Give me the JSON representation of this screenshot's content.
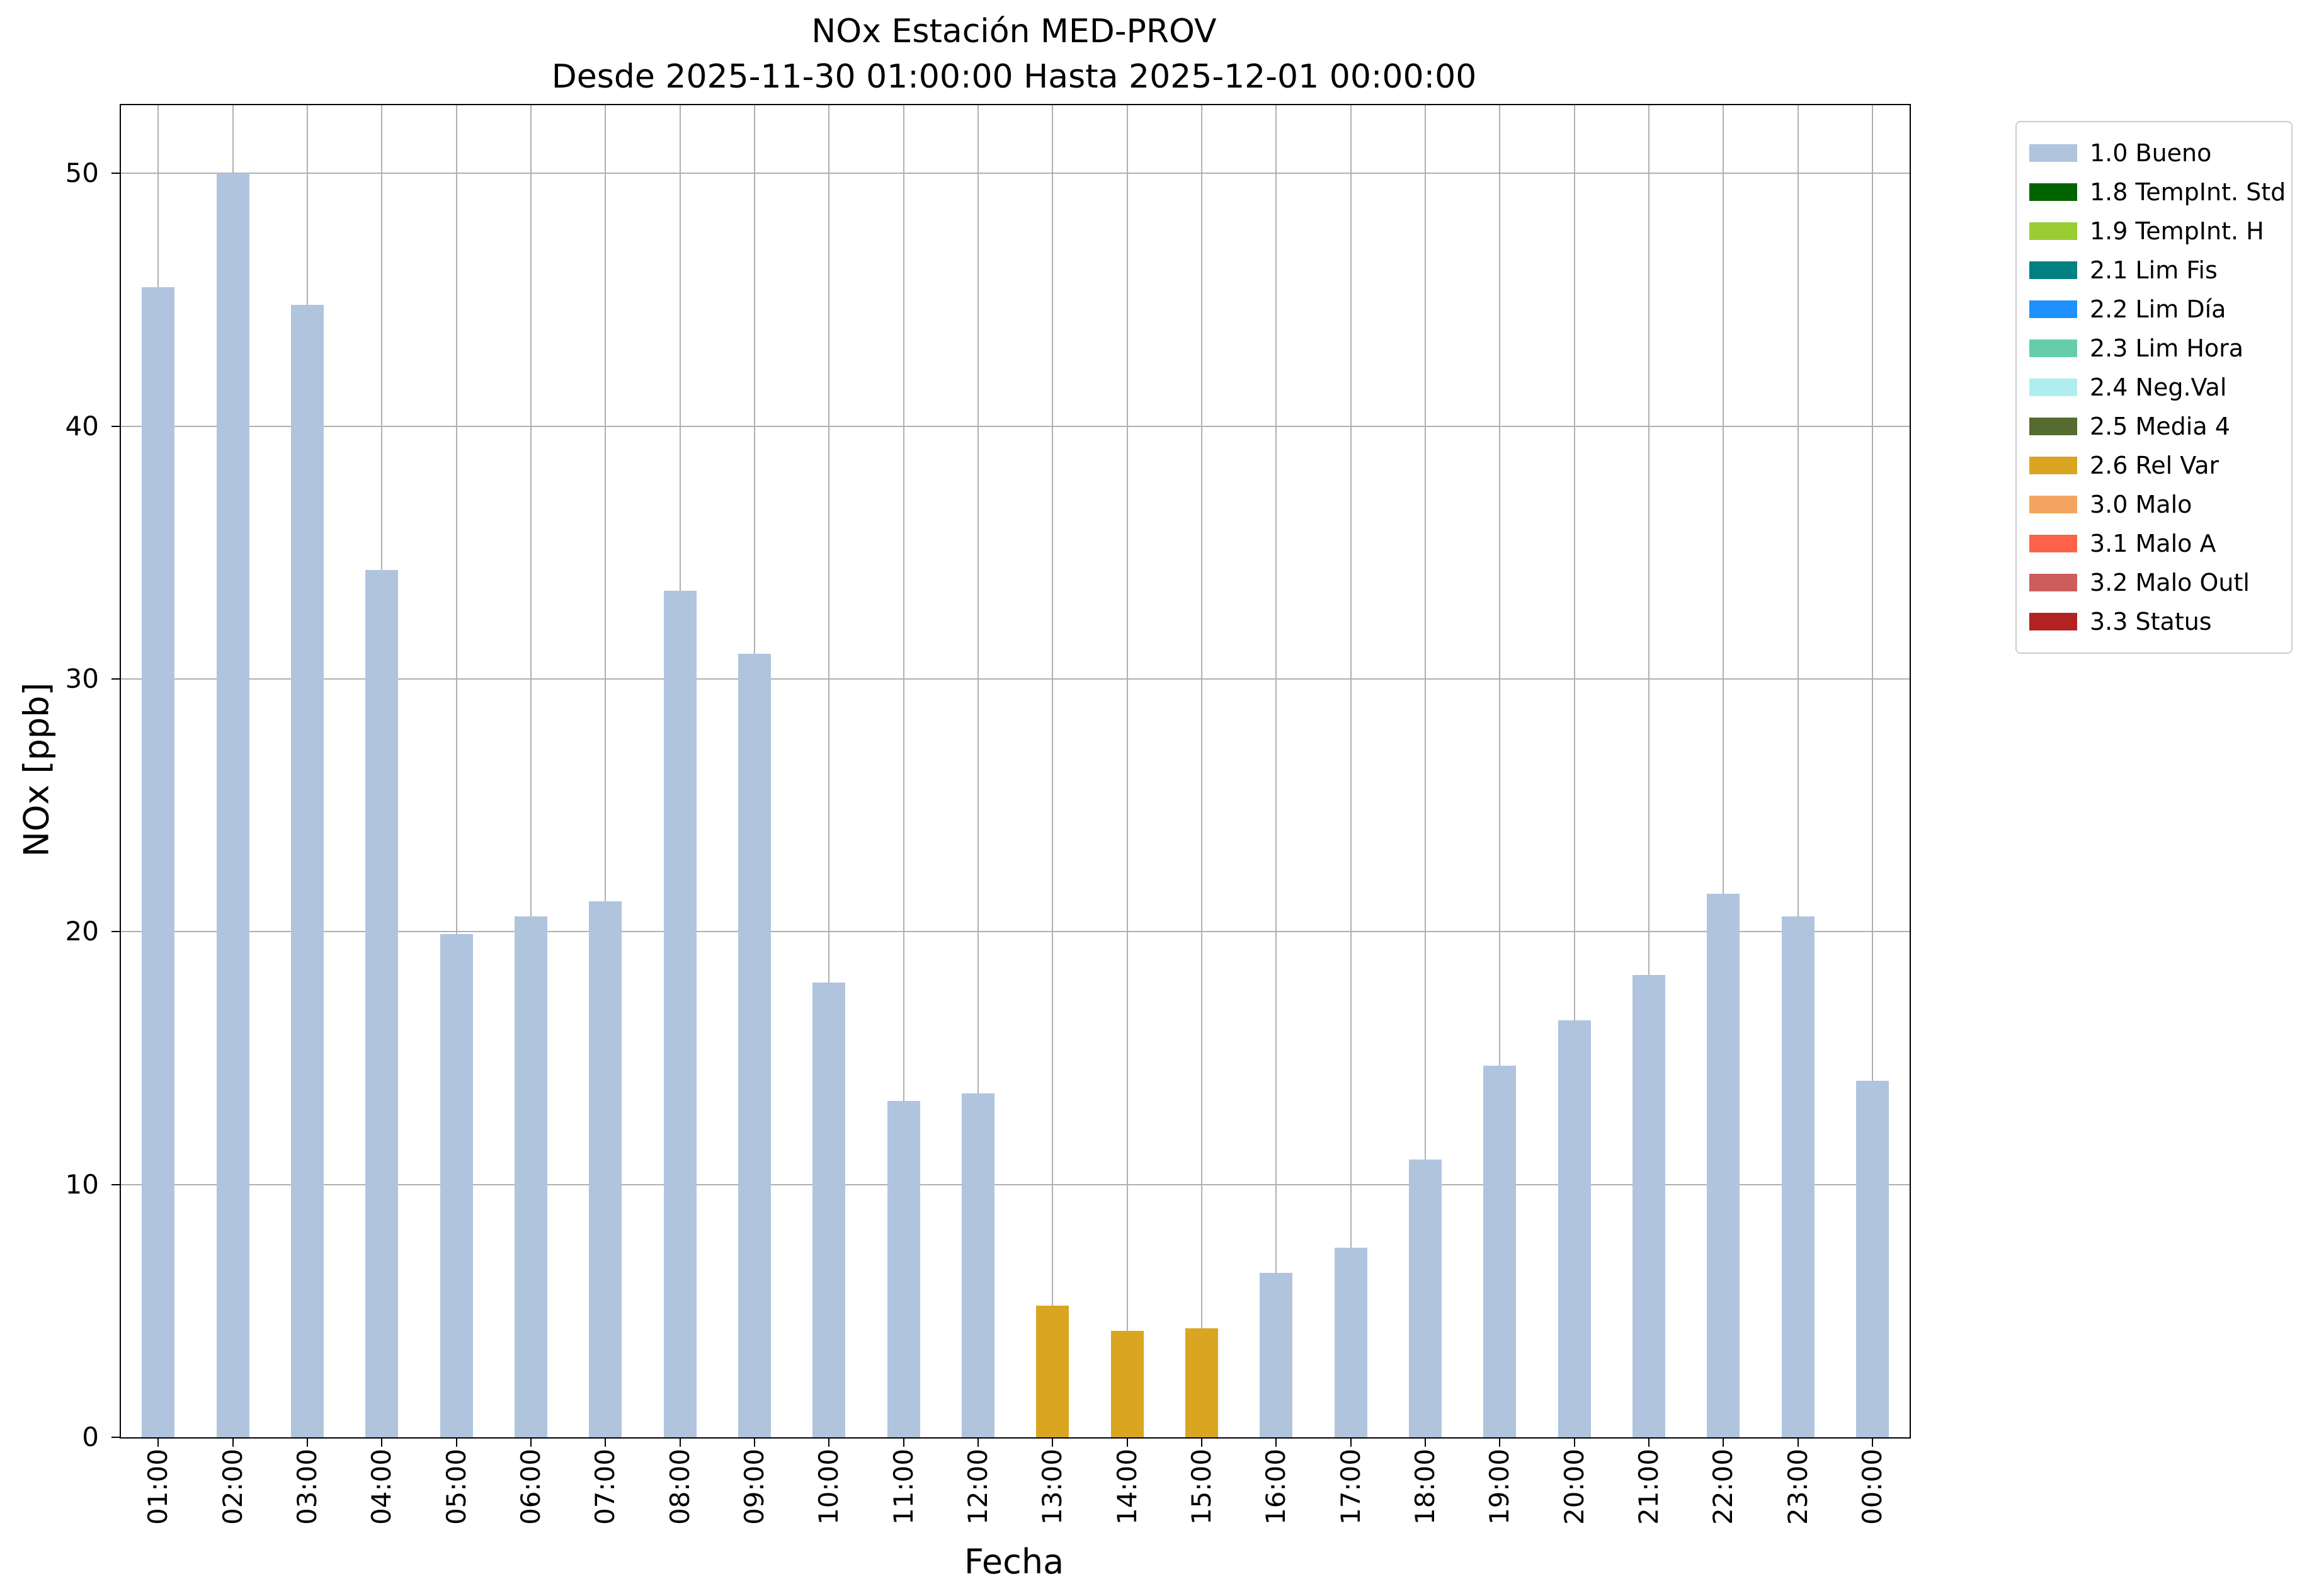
{
  "chart_data": {
    "type": "bar",
    "title": "NOx Estación MED-PROV",
    "subtitle": "Desde 2025-11-30 01:00:00 Hasta 2025-12-01 00:00:00",
    "xlabel": "Fecha",
    "ylabel": "NOx [ppb]",
    "ylim": [
      0,
      52.7
    ],
    "yticks": [
      0,
      10,
      20,
      30,
      40,
      50
    ],
    "grid": true,
    "legend_position": "outside-right",
    "categories": [
      "01:00",
      "02:00",
      "03:00",
      "04:00",
      "05:00",
      "06:00",
      "07:00",
      "08:00",
      "09:00",
      "10:00",
      "11:00",
      "12:00",
      "13:00",
      "14:00",
      "15:00",
      "16:00",
      "17:00",
      "18:00",
      "19:00",
      "20:00",
      "21:00",
      "22:00",
      "23:00",
      "00:00"
    ],
    "values": [
      45.5,
      50.0,
      44.8,
      34.3,
      19.9,
      20.6,
      21.2,
      33.5,
      31.0,
      18.0,
      13.3,
      13.6,
      5.2,
      4.2,
      4.3,
      6.5,
      7.5,
      11.0,
      14.7,
      16.5,
      18.3,
      21.5,
      20.6,
      14.1
    ],
    "flags": [
      "1.0",
      "1.0",
      "1.0",
      "1.0",
      "1.0",
      "1.0",
      "1.0",
      "1.0",
      "1.0",
      "1.0",
      "1.0",
      "1.0",
      "2.6",
      "2.6",
      "2.6",
      "1.0",
      "1.0",
      "1.0",
      "1.0",
      "1.0",
      "1.0",
      "1.0",
      "1.0",
      "1.0"
    ],
    "flag_colors": {
      "1.0": "#b0c4de",
      "2.6": "#daa520"
    },
    "legend": [
      {
        "label": "1.0 Bueno",
        "color": "#b0c4de"
      },
      {
        "label": "1.8 TempInt. Std",
        "color": "#006400"
      },
      {
        "label": "1.9 TempInt. H",
        "color": "#9acd32"
      },
      {
        "label": "2.1 Lim Fis",
        "color": "#008080"
      },
      {
        "label": "2.2 Lim Día",
        "color": "#1e90ff"
      },
      {
        "label": "2.3 Lim Hora",
        "color": "#66cdaa"
      },
      {
        "label": "2.4 Neg.Val",
        "color": "#afeeee"
      },
      {
        "label": "2.5 Media 4",
        "color": "#556b2f"
      },
      {
        "label": "2.6 Rel Var",
        "color": "#daa520"
      },
      {
        "label": "3.0 Malo",
        "color": "#f4a460"
      },
      {
        "label": "3.1 Malo A",
        "color": "#ff6347"
      },
      {
        "label": "3.2 Malo Outl",
        "color": "#cd5c5c"
      },
      {
        "label": "3.3 Status",
        "color": "#b22222"
      }
    ]
  }
}
